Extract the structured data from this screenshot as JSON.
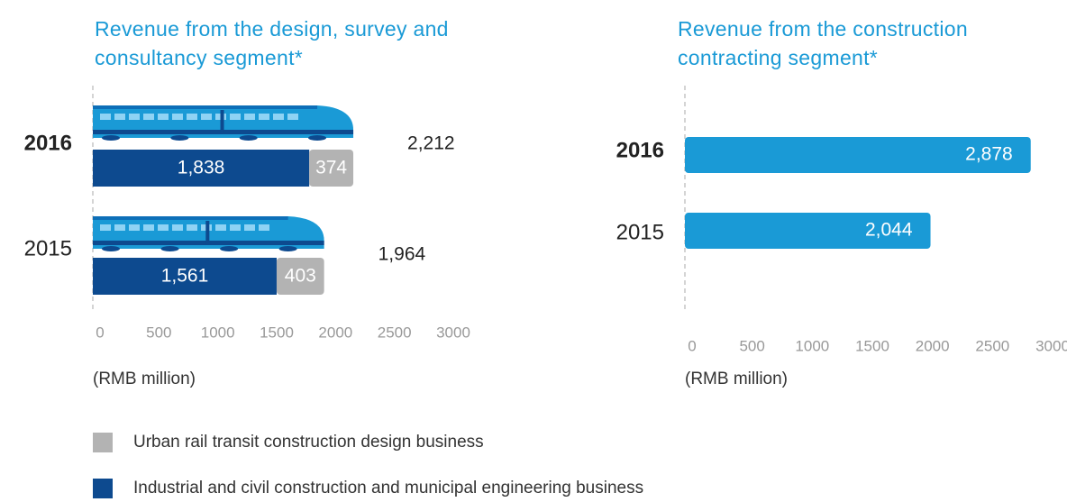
{
  "chart_data": [
    {
      "type": "stacked-bar",
      "title": "Revenue from the design, survey and consultancy segment*",
      "categories": [
        "2016",
        "2015"
      ],
      "series": [
        {
          "name": "Industrial and civil construction and municipal engineering business",
          "color": "#0d4a8f",
          "values": [
            1838,
            1561
          ],
          "value_labels": [
            "1,838",
            "1,561"
          ]
        },
        {
          "name": "Urban rail transit construction design business",
          "color": "#b3b3b3",
          "values": [
            374,
            403
          ]
        }
      ],
      "totals": [
        2212,
        1964
      ],
      "total_labels": [
        "2,212",
        "1,964"
      ],
      "xlim": [
        0,
        3000
      ],
      "xticks": [
        0,
        500,
        1000,
        1500,
        2000,
        2500,
        3000
      ],
      "xlabel": "(RMB million)"
    },
    {
      "type": "bar",
      "title": "Revenue from the construction contracting segment*",
      "categories": [
        "2016",
        "2015"
      ],
      "values": [
        2878,
        2044
      ],
      "value_labels": [
        "2,878",
        "2,044"
      ],
      "color": "#1a9ad6",
      "xlim": [
        0,
        3000
      ],
      "xticks": [
        0,
        500,
        1000,
        1500,
        2000,
        2500,
        3000
      ],
      "xlabel": "(RMB million)"
    }
  ]
}
